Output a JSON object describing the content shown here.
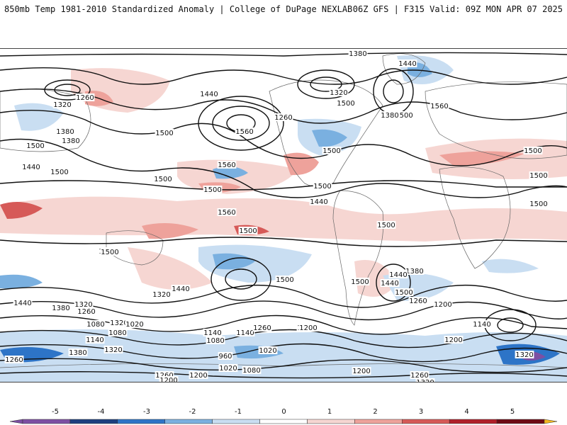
{
  "header": {
    "title_left": "850mb Temp 1981-2010 Standardized Anomaly | College of DuPage NEXLAB",
    "title_right": "06Z GFS | F315 Valid: 09Z MON APR 07 2025"
  },
  "map": {
    "contour_labels": [
      "1380",
      "1440",
      "1260",
      "1320",
      "1440",
      "1500",
      "1560",
      "1500",
      "1320",
      "1260",
      "1380",
      "1500",
      "1440",
      "1500",
      "1380",
      "1500",
      "1500",
      "1500",
      "1560",
      "1500",
      "1380",
      "1500",
      "1440",
      "1500",
      "1500",
      "1560",
      "1500",
      "1500",
      "1500",
      "1440",
      "1320",
      "1500",
      "1560",
      "1500",
      "1440",
      "1320",
      "1260",
      "1200",
      "1320",
      "1380",
      "1440",
      "1500",
      "1380",
      "1260",
      "1200",
      "1140",
      "1200",
      "1020",
      "1080",
      "1140",
      "1260",
      "1200",
      "1140",
      "1080",
      "1320",
      "1380",
      "1260",
      "960",
      "1020",
      "1080",
      "1200",
      "1260",
      "1320",
      "1020",
      "1200",
      "1140",
      "1080",
      "1320",
      "1260",
      "1200",
      "1500",
      "1440",
      "1500"
    ],
    "colors": {
      "neg5": "#7d4fa3",
      "neg4": "#1c3f7f",
      "neg3": "#2d74c7",
      "neg2": "#7ab0e0",
      "neg1": "#c9def2",
      "zero": "#ffffff",
      "pos1": "#f6d6d2",
      "pos2": "#eea29b",
      "pos3": "#d65a58",
      "pos4": "#b0202a",
      "pos5": "#6e0a14",
      "over": "#f3b820"
    }
  },
  "colorbar": {
    "ticks": [
      "-5",
      "-4",
      "-3",
      "-2",
      "-1",
      "0",
      "1",
      "2",
      "3",
      "4",
      "5"
    ]
  }
}
